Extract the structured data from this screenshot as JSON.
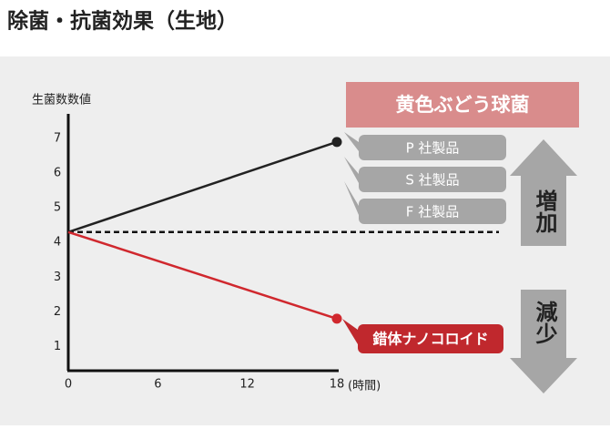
{
  "chart_data": {
    "type": "line",
    "title": "除菌・抗菌効果（生地）",
    "y_label": "生菌数数値",
    "x_label": "(時間)",
    "x": [
      0,
      18
    ],
    "series": [
      {
        "color": "#222222",
        "values": [
          4.3,
          6.9
        ]
      },
      {
        "color": "#d0282e",
        "values": [
          4.3,
          1.8
        ]
      }
    ],
    "baseline": 4.3,
    "xlim": [
      0,
      18
    ],
    "xticks": [
      0,
      6,
      12,
      18
    ],
    "ylim": [
      0.3,
      7.5
    ],
    "yticks": [
      1,
      2,
      3,
      4,
      5,
      6,
      7
    ],
    "annotations": {
      "header": "黄色ぶどう球菌",
      "products": [
        "P 社製品",
        "S 社製品",
        "F 社製品"
      ],
      "ours": "錯体ナノコロイド",
      "increase": "増加",
      "decrease": "減少"
    }
  }
}
